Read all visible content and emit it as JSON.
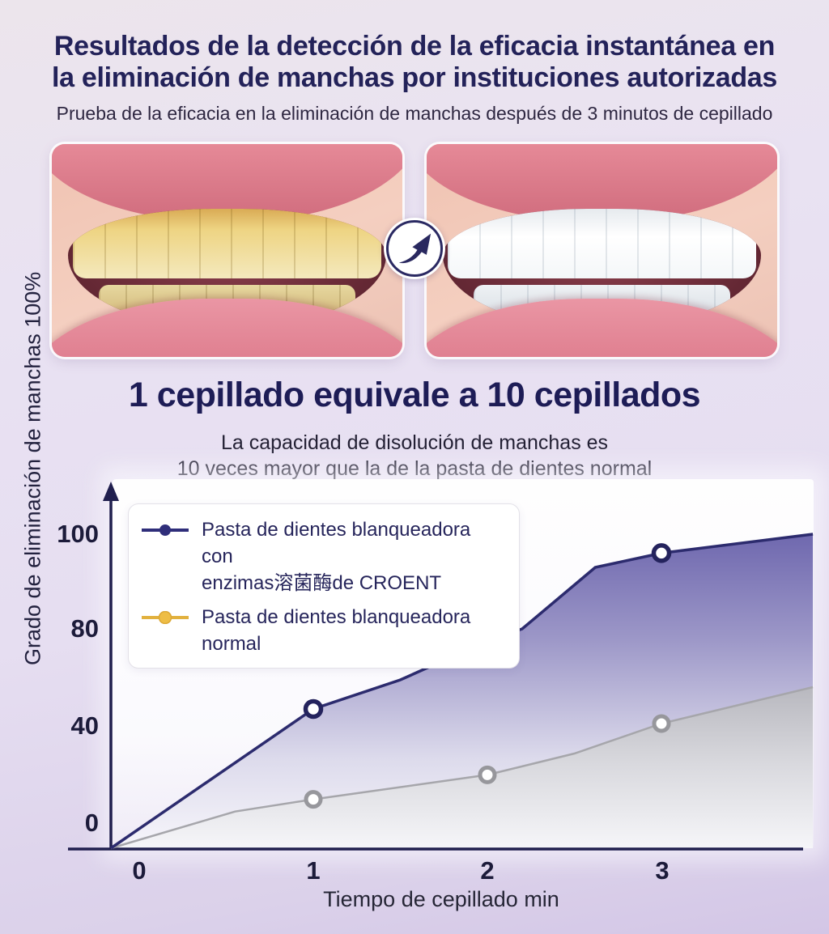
{
  "header": {
    "title_line1": "Resultados de la detección de la eficacia instantánea en",
    "title_line2": "la eliminación de manchas por instituciones autorizadas",
    "subtitle": "Prueba de la eficacia en la eliminación de manchas después de 3 minutos de cepillado"
  },
  "comparison": {
    "before_image": "sonrisa-dientes-amarillos",
    "after_image": "sonrisa-dientes-blancos",
    "arrow_icon": "curved-up-right-arrow"
  },
  "claim": {
    "heading": "1 cepillado equivale a 10 cepillados",
    "line1": "La capacidad de disolución de manchas es",
    "line2": "10 veces mayor que la de la pasta de dientes normal"
  },
  "chart_data": {
    "type": "area",
    "title": "",
    "xlabel": "Tiempo de cepillado min",
    "ylabel": "Grado de eliminación de manchas 100%",
    "x": [
      0,
      1,
      2,
      3
    ],
    "x_tick_labels": [
      "0",
      "1",
      "2",
      "3"
    ],
    "y_tick_labels": [
      "0",
      "40",
      "80",
      "100"
    ],
    "y_ticks": [
      0,
      40,
      80,
      100
    ],
    "ylim": [
      0,
      100
    ],
    "grid": false,
    "legend_position": "top-left",
    "colors": {
      "axis": "#201f4e",
      "croent_line": "#2c2b6e",
      "croent_fill_top": "#6c65ad",
      "normal_line": "#a6a6ab",
      "normal_legend": "#e2b13e",
      "marker_fill": "#ffffff"
    },
    "series": [
      {
        "name": "Pasta de dientes blanqueadora con enzimas溶菌酶de CROENT",
        "legend_lines": [
          "Pasta de dientes blanqueadora con",
          "enzimas溶菌酶de CROENT"
        ],
        "values": [
          0,
          47,
          75,
          96
        ],
        "curve": [
          [
            -0.163,
            0
          ],
          [
            0.5,
            26
          ],
          [
            1,
            47
          ],
          [
            1.5,
            59
          ],
          [
            2,
            75
          ],
          [
            2.2,
            80
          ],
          [
            2.62,
            93
          ],
          [
            3,
            96
          ],
          [
            3.87,
            100
          ]
        ]
      },
      {
        "name": "Pasta de dientes blanqueadora normal",
        "legend_lines": [
          "Pasta de dientes blanqueadora normal"
        ],
        "values": [
          0,
          16,
          24,
          41
        ],
        "curve": [
          [
            -0.163,
            0
          ],
          [
            0.55,
            12
          ],
          [
            1,
            16
          ],
          [
            2,
            24
          ],
          [
            2.5,
            31
          ],
          [
            3,
            41
          ],
          [
            3.87,
            56
          ]
        ]
      }
    ]
  }
}
